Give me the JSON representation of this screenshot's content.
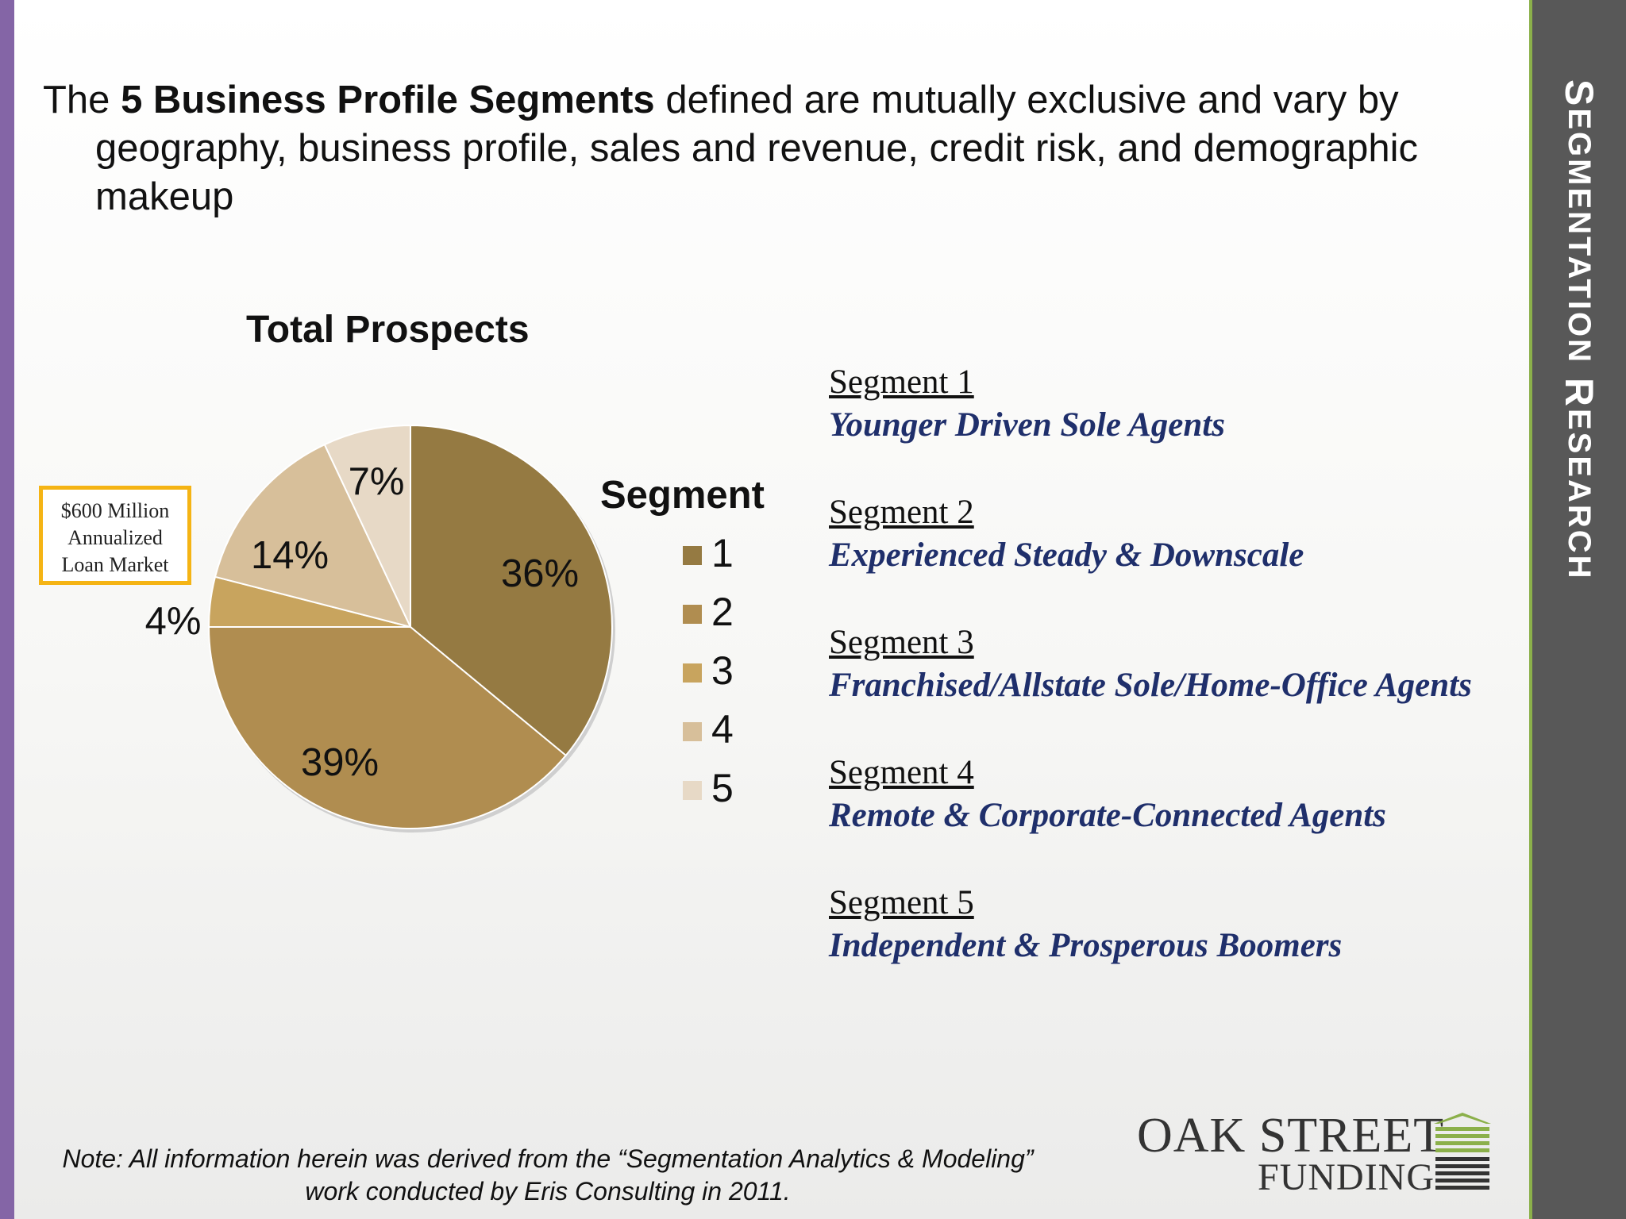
{
  "colors": {
    "left_bar": "#8465a6",
    "side_panel": "#585858",
    "side_panel_border": "#8bb04a",
    "segment_name": "#1f2f6b",
    "callout_border": "#f5b414",
    "logo_green": "#8bb04a"
  },
  "side_title": {
    "big1": "S",
    "small1": "EGMENTATION",
    "big2": "R",
    "small2": "ESEARCH"
  },
  "intro": {
    "prefix": "The ",
    "bold": "5 Business Profile Segments",
    "suffix": " defined are mutually exclusive and vary by geography, business profile, sales and revenue, credit risk, and demographic makeup"
  },
  "callout": {
    "line1": "$600 Million",
    "line2": "Annualized",
    "line3": "Loan Market"
  },
  "chart_data": {
    "type": "pie",
    "title": "Total Prospects",
    "legend_title": "Segment",
    "legend_placement": "right",
    "start_angle_deg": 0,
    "direction": "clockwise",
    "slices": [
      {
        "label": "1",
        "value": 36,
        "value_label": "36%",
        "color": "#957a42"
      },
      {
        "label": "2",
        "value": 39,
        "value_label": "39%",
        "color": "#b08d50"
      },
      {
        "label": "3",
        "value": 4,
        "value_label": "4%",
        "color": "#c8a45e"
      },
      {
        "label": "4",
        "value": 14,
        "value_label": "14%",
        "color": "#d7bf9a"
      },
      {
        "label": "5",
        "value": 7,
        "value_label": "7%",
        "color": "#e7d9c6"
      }
    ]
  },
  "segments": [
    {
      "heading": "Segment 1",
      "name": "Younger Driven Sole Agents"
    },
    {
      "heading": "Segment 2",
      "name": "Experienced Steady & Downscale"
    },
    {
      "heading": "Segment 3",
      "name": "Franchised/Allstate Sole/Home-Office Agents"
    },
    {
      "heading": "Segment 4",
      "name": "Remote & Corporate-Connected Agents"
    },
    {
      "heading": "Segment 5",
      "name": "Independent & Prosperous Boomers"
    }
  ],
  "note": {
    "line1": "Note: All information herein was derived from the “Segmentation Analytics & Modeling”",
    "line2": "work conducted by Eris Consulting in 2011."
  },
  "logo": {
    "line1": "OAK STREET",
    "line2": "FUNDING"
  }
}
